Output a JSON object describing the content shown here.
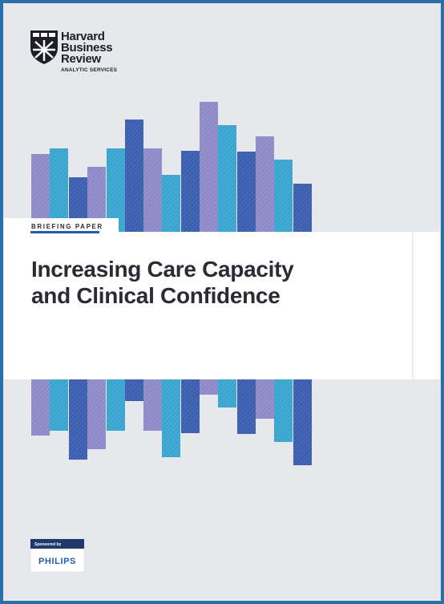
{
  "logo": {
    "lines": [
      "Harvard",
      "Business",
      "Review"
    ],
    "subtitle": "ANALYTIC SERVICES"
  },
  "label": "BRIEFING PAPER",
  "title": [
    "Increasing Care Capacity",
    "and Clinical Confidence"
  ],
  "sponsor": {
    "label": "Sponsored by",
    "name": "PHILIPS"
  }
}
